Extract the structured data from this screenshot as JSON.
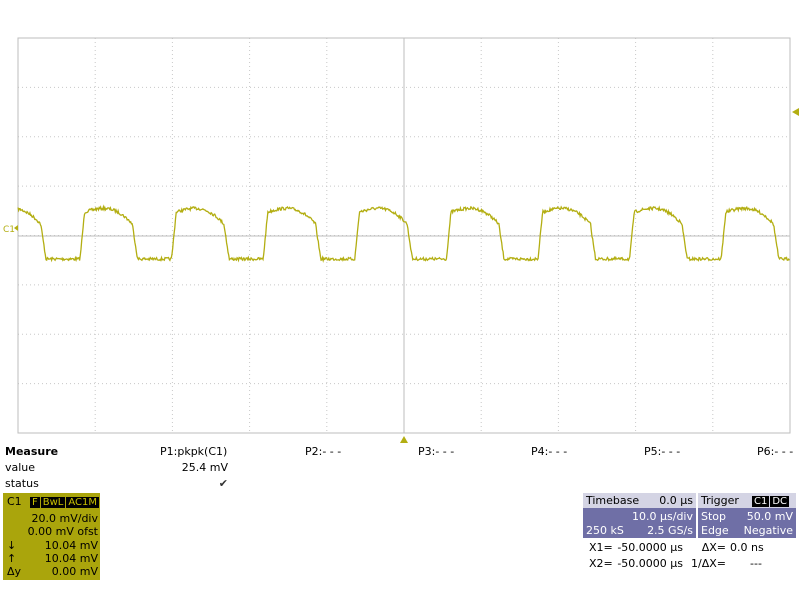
{
  "channel_marker": "C1",
  "measure": {
    "title": "Measure",
    "columns": [
      "P1:pkpk(C1)",
      "P2:- - -",
      "P3:- - -",
      "P4:- - -",
      "P5:- - -",
      "P6:- - -"
    ],
    "row_labels": [
      "value",
      "status"
    ],
    "value": "25.4 mV",
    "status": "✔"
  },
  "channel": {
    "name": "C1",
    "tags": [
      "F",
      "BwL",
      "AC1M"
    ],
    "scale": "20.0 mV/div",
    "offset": "0.00 mV ofst",
    "rows": [
      [
        "↓",
        "10.04 mV"
      ],
      [
        "↑",
        "10.04 mV"
      ],
      [
        "Δy",
        "0.00 mV"
      ]
    ]
  },
  "timebase": {
    "title": "Timebase",
    "delay": "0.0 µs",
    "scale": "10.0 µs/div",
    "samples": "250 kS",
    "rate": "2.5 GS/s"
  },
  "trigger": {
    "title": "Trigger",
    "tags": [
      "C1",
      "DC"
    ],
    "mode": "Stop",
    "level": "50.0 mV",
    "type": "Edge",
    "slope": "Negative"
  },
  "cursors": [
    [
      "X1=",
      "-50.0000 µs",
      "ΔX=",
      "0.0 ns"
    ],
    [
      "X2=",
      "-50.0000 µs",
      "1/ΔX=",
      "---"
    ]
  ]
}
